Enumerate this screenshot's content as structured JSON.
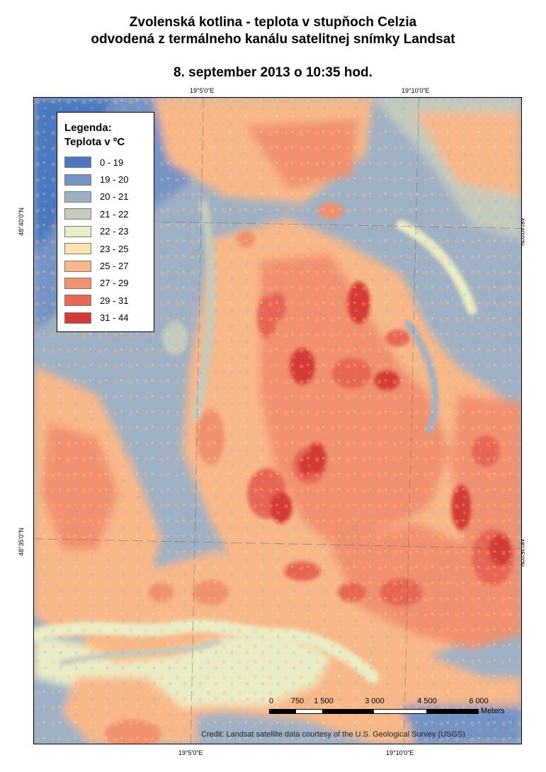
{
  "title": {
    "line1": "Zvolenská kotlina - teplota v stupňoch Celzia",
    "line2": "odvodená z termálneho kanálu satelitnej snímky Landsat",
    "date": "8. september 2013 o 10:35 hod."
  },
  "coordinates": {
    "top_left_lon": "19°5'0\"E",
    "top_right_lon": "19°10'0\"E",
    "bottom_left_lon": "19°5'0\"E",
    "bottom_right_lon": "19°10'0\"E",
    "left_upper_lat": "48°40'0\"N",
    "left_lower_lat": "48°35'0\"N",
    "right_upper_lat": "48°40'0\"N",
    "right_lower_lat": "48°35'0\"N"
  },
  "legend": {
    "title_line1": "Legenda:",
    "title_line2": "Teplota v ºC",
    "items": [
      {
        "label": "0 - 19",
        "color": "#4a78c0"
      },
      {
        "label": "19 - 20",
        "color": "#7393c4"
      },
      {
        "label": "20 - 21",
        "color": "#9fb0c4"
      },
      {
        "label": "21 - 22",
        "color": "#c4ccbe"
      },
      {
        "label": "22 - 23",
        "color": "#ebedc6"
      },
      {
        "label": "23 - 25",
        "color": "#fde3ad"
      },
      {
        "label": "25 - 27",
        "color": "#f9b888"
      },
      {
        "label": "27 - 29",
        "color": "#f2916e"
      },
      {
        "label": "29 - 31",
        "color": "#e86653"
      },
      {
        "label": "31 - 44",
        "color": "#d63a36"
      }
    ]
  },
  "scale": {
    "labels": [
      "0",
      "750",
      "1 500",
      "3 000",
      "4 500",
      "6 000"
    ],
    "units": "Meters"
  },
  "credit": "Credit: Landsat satellite data courtesy of the U.S. Geological Survey (USGS)"
}
